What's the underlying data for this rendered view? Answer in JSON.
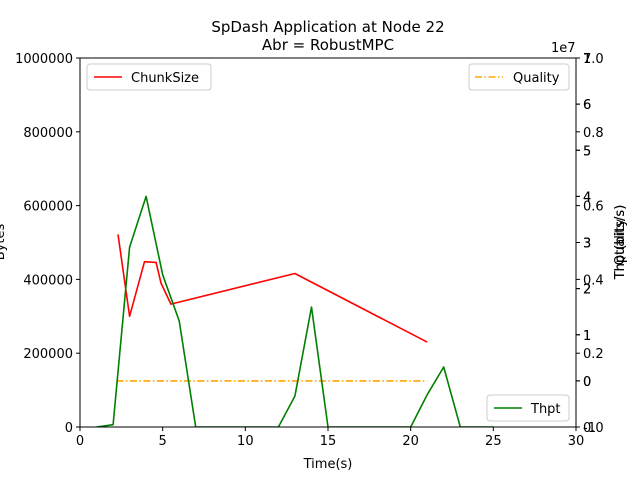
{
  "chart_data": {
    "type": "line",
    "title": "SpDash Application at Node 22",
    "subtitle": "Abr = RobustMPC",
    "xlabel": "Time(s)",
    "xlim": [
      0,
      30
    ],
    "x_ticks": [
      "0",
      "5",
      "10",
      "15",
      "20",
      "25",
      "30"
    ],
    "axes": {
      "left": {
        "label": "Bytes",
        "ylim": [
          0,
          1000000
        ],
        "ticks": [
          "0",
          "200000",
          "400000",
          "600000",
          "800000",
          "1000000"
        ]
      },
      "right_quality": {
        "label": "Quality",
        "ylim": [
          -1,
          7
        ],
        "ticks": [
          "-1",
          "0",
          "1",
          "2",
          "3",
          "4",
          "5",
          "6",
          "7"
        ]
      },
      "right_norm": {
        "label": "Thpt(bits/s)",
        "ylim": [
          0,
          1
        ],
        "ticks": [
          "0.0",
          "0.2",
          "0.4",
          "0.6",
          "0.8",
          "1.0"
        ]
      },
      "right_thpt": {
        "label": "Thpt(bits/s)",
        "offset_text": "1e7",
        "ylim": [
          -1,
          7
        ],
        "ticks": [
          "0",
          "1",
          "2",
          "3",
          "4",
          "5",
          "6",
          "7"
        ]
      }
    },
    "series": [
      {
        "name": "ChunkSize",
        "axis": "left",
        "color": "#ff0000",
        "style": "solid",
        "x": [
          2.3,
          3.0,
          3.9,
          4.6,
          4.9,
          5.5,
          13.0,
          21.0
        ],
        "y": [
          522000,
          300000,
          448000,
          446000,
          390000,
          333000,
          416000,
          230000
        ]
      },
      {
        "name": "Quality",
        "axis": "right_quality",
        "color": "#ffa500",
        "style": "dashdot",
        "x": [
          2.2,
          21.0
        ],
        "y": [
          0,
          0
        ]
      },
      {
        "name": "Thpt",
        "axis": "right_thpt",
        "color": "#008000",
        "style": "solid",
        "x": [
          1,
          2,
          3,
          4,
          5,
          6,
          7,
          8,
          9,
          10,
          11,
          12,
          13,
          14,
          15,
          16,
          17,
          18,
          19,
          20,
          21,
          22,
          23,
          24,
          25
        ],
        "y": [
          -1,
          -0.95,
          2.9,
          4.0,
          2.3,
          1.3,
          -1,
          -1,
          -1,
          -1,
          -1,
          -1,
          -0.33,
          1.6,
          -1,
          -1,
          -1,
          -1,
          -1,
          -1,
          -0.3,
          0.3,
          -1,
          -1,
          -1
        ]
      }
    ],
    "legends": [
      {
        "series": "ChunkSize",
        "placement": "upper-left"
      },
      {
        "series": "Quality",
        "placement": "upper-right"
      },
      {
        "series": "Thpt",
        "placement": "lower-right"
      }
    ],
    "grid": false
  }
}
